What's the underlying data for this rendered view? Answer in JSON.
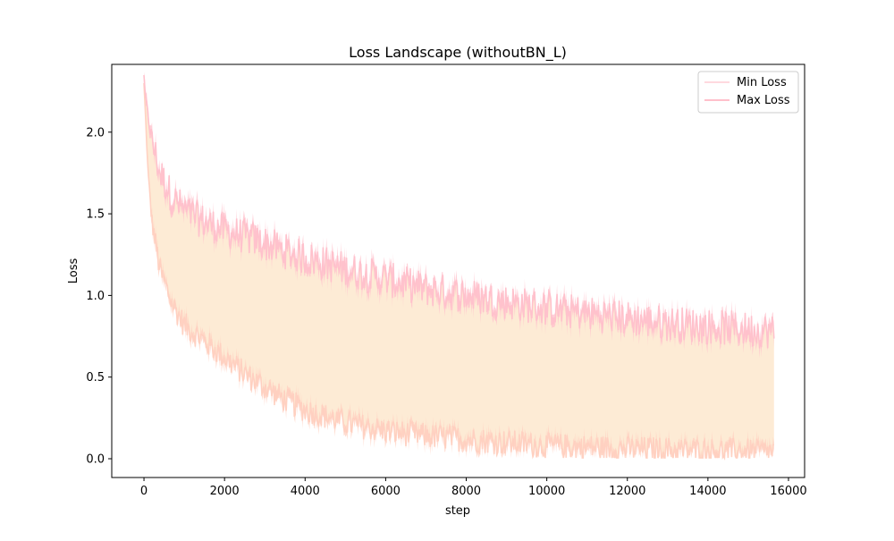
{
  "chart_data": {
    "type": "area",
    "title": "Loss Landscape (withoutBN_L)",
    "xlabel": "step",
    "ylabel": "Loss",
    "xlim": [
      -800,
      16400
    ],
    "ylim": [
      -0.115,
      2.415
    ],
    "x_ticks": [
      0,
      2000,
      4000,
      6000,
      8000,
      10000,
      12000,
      14000,
      16000
    ],
    "x_tick_labels": [
      "0",
      "2000",
      "4000",
      "6000",
      "8000",
      "10000",
      "12000",
      "14000",
      "16000"
    ],
    "y_ticks": [
      0.0,
      0.5,
      1.0,
      1.5,
      2.0
    ],
    "y_tick_labels": [
      "0.0",
      "0.5",
      "1.0",
      "1.5",
      "2.0"
    ],
    "grid": false,
    "legend": {
      "placement": "upper-right",
      "entries": [
        "Min Loss",
        "Max Loss"
      ]
    },
    "fill_between_color": "#fdebd5",
    "series": [
      {
        "name": "Min Loss",
        "color": "#ffd0c0",
        "legend_color": "#ffd9df",
        "x": [
          0,
          100,
          200,
          400,
          700,
          1000,
          1500,
          2000,
          2500,
          3000,
          3500,
          4000,
          5000,
          6000,
          7000,
          8000,
          9000,
          10000,
          11000,
          12000,
          13000,
          14000,
          15000,
          15640
        ],
        "values": [
          2.3,
          1.75,
          1.45,
          1.15,
          0.95,
          0.82,
          0.72,
          0.62,
          0.52,
          0.44,
          0.36,
          0.3,
          0.22,
          0.17,
          0.14,
          0.12,
          0.1,
          0.08,
          0.07,
          0.06,
          0.055,
          0.05,
          0.045,
          0.04
        ],
        "noise": 0.08
      },
      {
        "name": "Max Loss",
        "color": "#ffc0cb",
        "legend_color": "#ffc0cb",
        "x": [
          0,
          100,
          200,
          400,
          700,
          1000,
          1500,
          2000,
          2500,
          3000,
          3500,
          4000,
          5000,
          6000,
          7000,
          8000,
          9000,
          10000,
          11000,
          12000,
          13000,
          14000,
          15000,
          15640
        ],
        "values": [
          2.3,
          2.1,
          1.95,
          1.75,
          1.6,
          1.52,
          1.45,
          1.4,
          1.36,
          1.32,
          1.27,
          1.23,
          1.16,
          1.1,
          1.04,
          1.0,
          0.96,
          0.92,
          0.89,
          0.86,
          0.83,
          0.81,
          0.79,
          0.78
        ],
        "noise": 0.11
      }
    ]
  }
}
